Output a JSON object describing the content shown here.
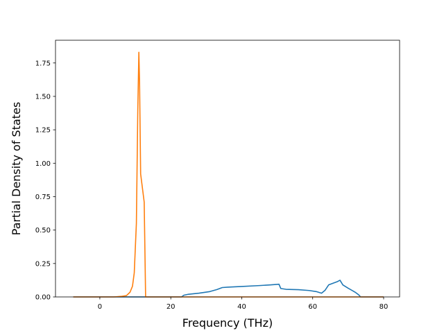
{
  "chart_data": {
    "type": "line",
    "title": "",
    "xlabel": "Frequency (THz)",
    "ylabel": "Partial Density of States",
    "xlim": [
      -12.5,
      84.5
    ],
    "ylim": [
      0,
      1.92
    ],
    "xticks": [
      0,
      20,
      40,
      60,
      80
    ],
    "yticks": [
      0,
      0.25,
      0.5,
      0.75,
      1.0,
      1.25,
      1.5,
      1.75
    ],
    "xtick_labels": [
      "0",
      "20",
      "40",
      "60",
      "80"
    ],
    "ytick_labels": [
      "0.00",
      "0.25",
      "0.50",
      "0.75",
      "1.00",
      "1.25",
      "1.50",
      "1.75"
    ],
    "grid": false,
    "legend": "none",
    "series": [
      {
        "color": "#1f77b4",
        "x": [
          -7.5,
          8.0,
          12.5,
          20.0,
          23.0,
          23.7,
          25.0,
          28.0,
          31.0,
          33.0,
          34.5,
          36.0,
          40.0,
          45.0,
          48.0,
          50.5,
          51.0,
          52.5,
          56.0,
          59.0,
          61.0,
          62.5,
          63.5,
          64.5,
          66.0,
          67.0,
          67.7,
          68.5,
          70.0,
          72.0,
          73.0,
          73.5,
          80.0
        ],
        "y": [
          0.0,
          0.0,
          0.0,
          0.0,
          0.0,
          0.013,
          0.02,
          0.028,
          0.04,
          0.055,
          0.07,
          0.073,
          0.078,
          0.085,
          0.09,
          0.095,
          0.063,
          0.057,
          0.054,
          0.048,
          0.04,
          0.028,
          0.05,
          0.09,
          0.105,
          0.115,
          0.125,
          0.09,
          0.065,
          0.035,
          0.015,
          0.0,
          0.0
        ]
      },
      {
        "color": "#ff7f0e",
        "x": [
          -7.5,
          4.0,
          6.0,
          7.5,
          8.5,
          9.2,
          9.7,
          10.3,
          10.7,
          11.0,
          11.2,
          11.5,
          12.5,
          12.9,
          13.5,
          20.0,
          40.0,
          60.0,
          80.0
        ],
        "y": [
          0.0,
          0.0,
          0.004,
          0.01,
          0.035,
          0.08,
          0.18,
          0.55,
          1.4,
          1.83,
          1.6,
          0.92,
          0.71,
          0.0,
          0.0,
          0.0,
          0.0,
          0.0,
          0.0
        ]
      }
    ]
  }
}
